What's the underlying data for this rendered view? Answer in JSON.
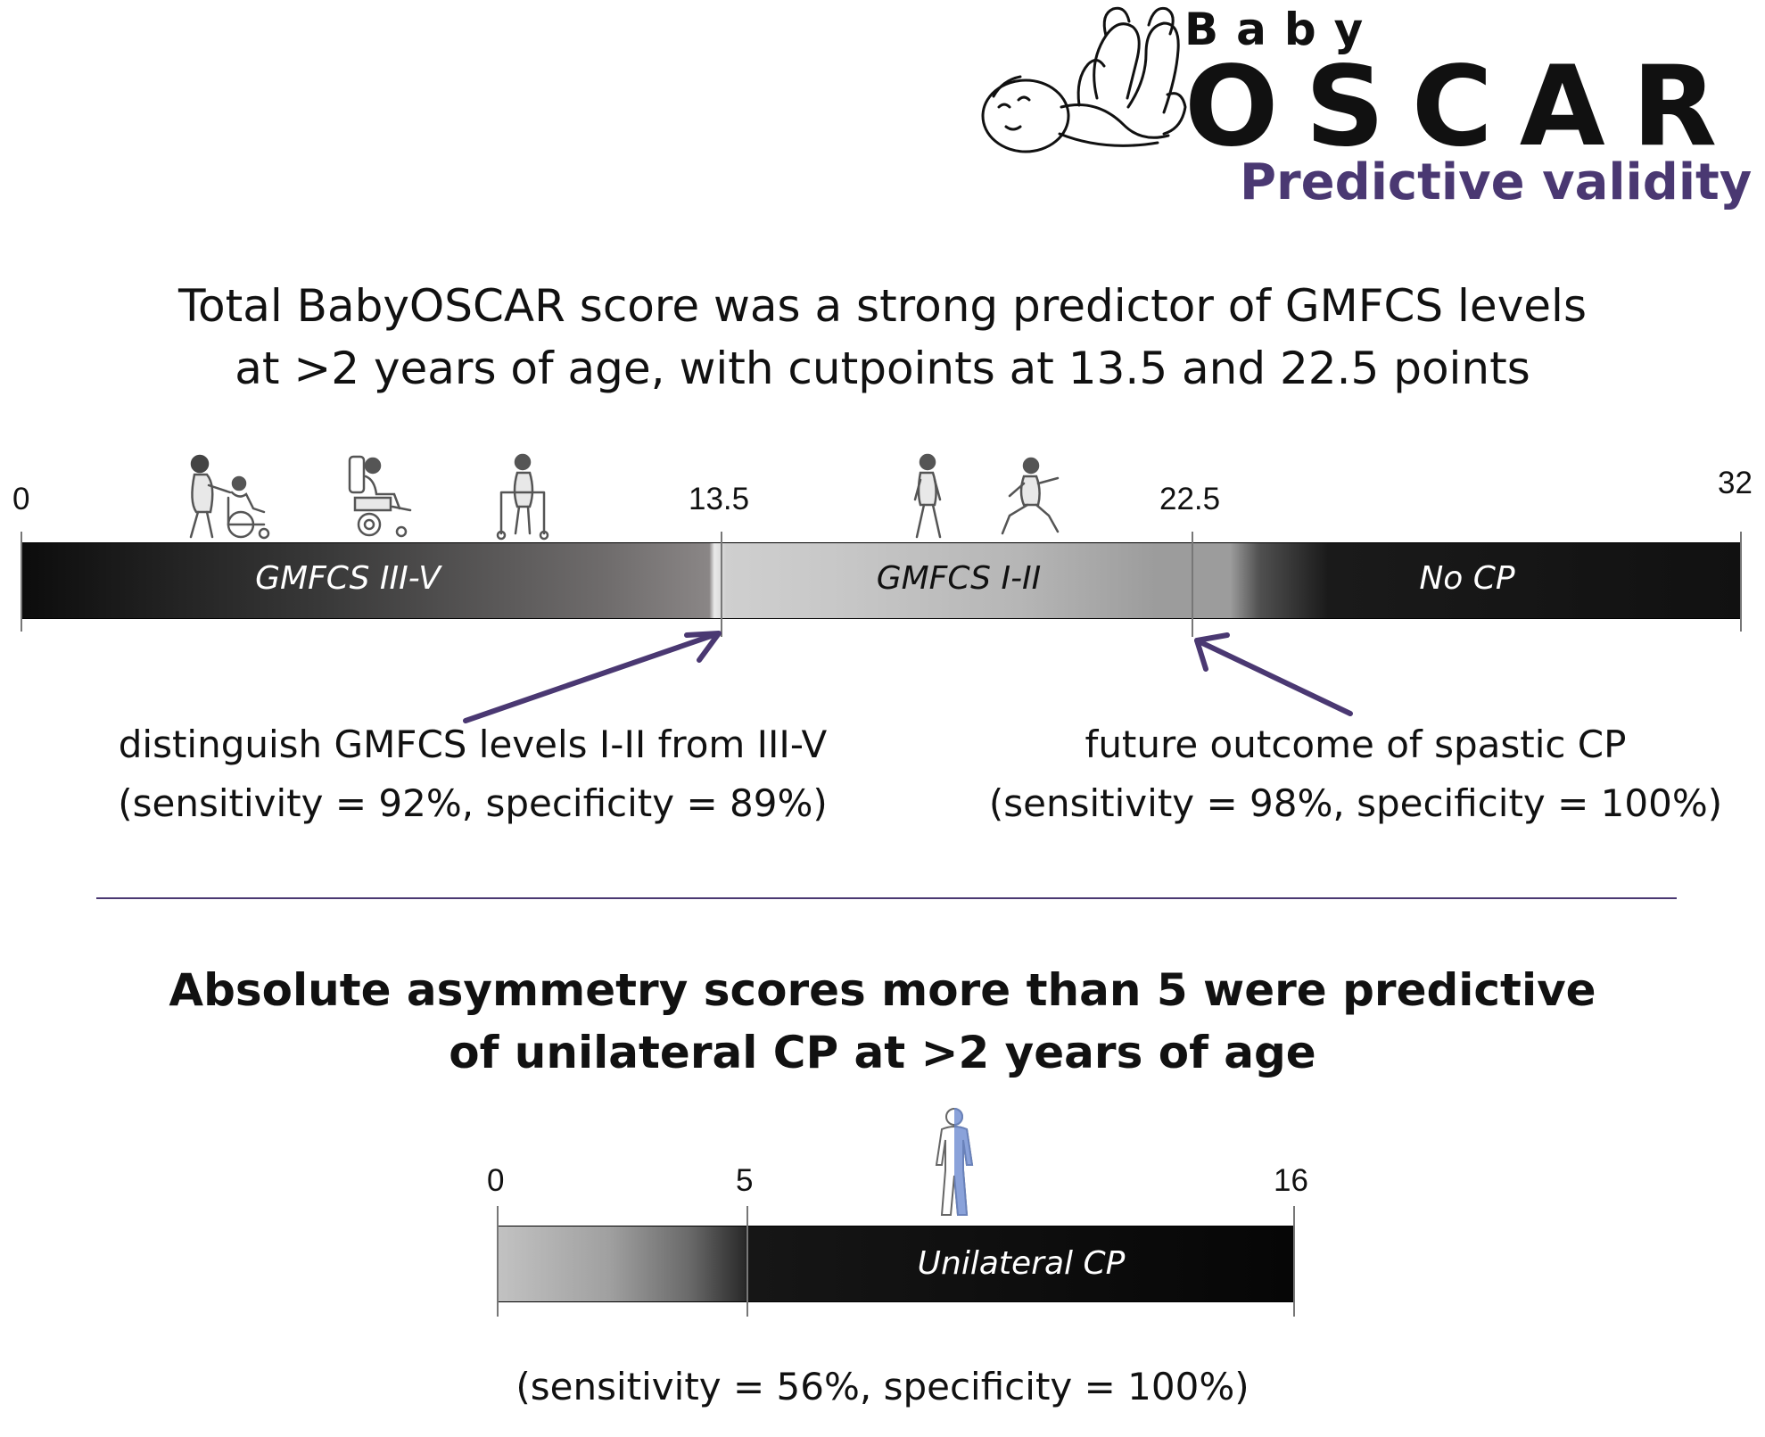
{
  "logo": {
    "baby": "Baby",
    "oscar": "OSCAR",
    "subtitle": "Predictive validity"
  },
  "colors": {
    "accent_purple": "#4a3872",
    "bar_dark": "#111111",
    "bar_light": "#c4c4c4",
    "body_blue": "#8aa2da"
  },
  "section1": {
    "headline_line1": "Total BabyOSCAR score was a strong predictor of GMFCS levels",
    "headline_line2": "at >2 years of age, with cutpoints at 13.5 and 22.5 points",
    "scale": {
      "min": 0,
      "max": 32,
      "cutpoints": [
        13.5,
        22.5
      ],
      "tick_labels": [
        "0",
        "13.5",
        "22.5",
        "32"
      ]
    },
    "segments": [
      {
        "label": "GMFCS III-V",
        "from": 0,
        "to": 13.5
      },
      {
        "label": "GMFCS I-II",
        "from": 13.5,
        "to": 22.5
      },
      {
        "label": "No CP",
        "from": 22.5,
        "to": 32
      }
    ],
    "icons": [
      "wheelchair-pushed-icon",
      "power-wheelchair-icon",
      "walker-icon",
      "walking-child-icon",
      "running-child-icon"
    ],
    "annotation_left": {
      "line1": "distinguish GMFCS levels I-II from III-V",
      "line2": "(sensitivity = 92%, specificity = 89%)"
    },
    "annotation_right": {
      "line1": "future outcome of spastic CP",
      "line2": "(sensitivity = 98%, specificity = 100%)"
    }
  },
  "section2": {
    "headline_line1": "Absolute asymmetry scores more than 5 were predictive",
    "headline_line2": "of unilateral CP at >2 years of age",
    "scale": {
      "min": 0,
      "max": 16,
      "cutpoint": 5,
      "tick_labels": [
        "0",
        "5",
        "16"
      ]
    },
    "segments": [
      {
        "label": "",
        "from": 0,
        "to": 5
      },
      {
        "label": "Unilateral CP",
        "from": 5,
        "to": 16
      }
    ],
    "icons": [
      "half-body-figure-icon"
    ],
    "stats": "(sensitivity = 56%, specificity = 100%)"
  }
}
